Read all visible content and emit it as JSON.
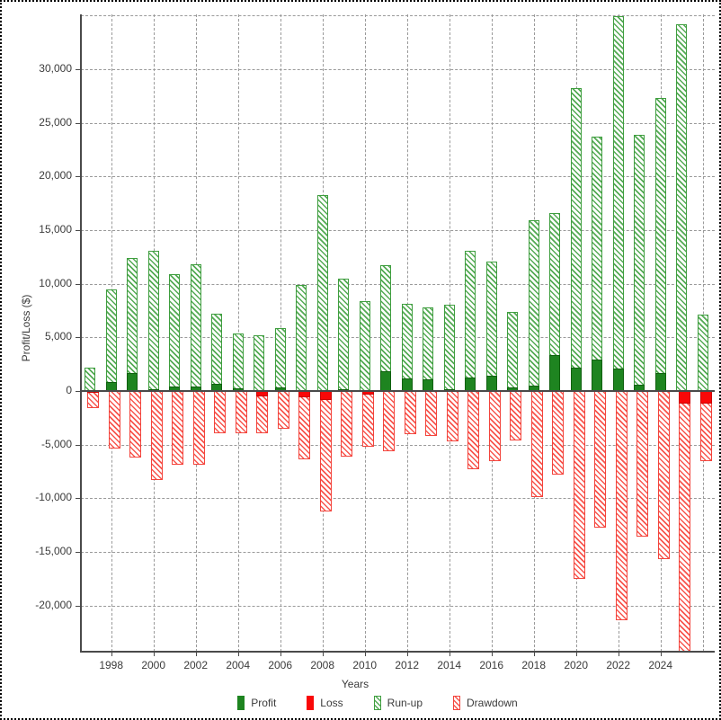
{
  "chart_data": {
    "type": "bar",
    "title": "",
    "xlabel": "Years",
    "ylabel": "Profit/Loss ($)",
    "categories": [
      1997,
      1998,
      1999,
      2000,
      2001,
      2002,
      2003,
      2004,
      2005,
      2006,
      2007,
      2008,
      2009,
      2010,
      2011,
      2012,
      2013,
      2014,
      2015,
      2016,
      2017,
      2018,
      2019,
      2020,
      2021,
      2022,
      2023,
      2024,
      2025,
      2026
    ],
    "series": [
      {
        "name": "Profit",
        "style": "solid",
        "color": "#1e8420",
        "values": [
          0,
          800,
          1650,
          150,
          400,
          400,
          700,
          250,
          0,
          330,
          0,
          0,
          200,
          0,
          1850,
          1150,
          1050,
          200,
          1250,
          1400,
          300,
          500,
          3350,
          2200,
          2950,
          2050,
          550,
          1650,
          0,
          0
        ]
      },
      {
        "name": "Loss",
        "style": "solid",
        "color": "#f90808",
        "values": [
          -200,
          0,
          0,
          0,
          0,
          0,
          0,
          0,
          -500,
          0,
          -600,
          -800,
          0,
          -300,
          0,
          0,
          0,
          0,
          0,
          0,
          0,
          0,
          0,
          0,
          0,
          0,
          0,
          0,
          -1200,
          -1150
        ]
      },
      {
        "name": "Run-up",
        "style": "hatch",
        "color": "#3f9e3f",
        "values": [
          2200,
          9500,
          12400,
          13100,
          10900,
          11800,
          7200,
          5400,
          5200,
          5900,
          9900,
          18300,
          10500,
          8400,
          11700,
          8100,
          7800,
          8000,
          13100,
          12100,
          7400,
          15900,
          16600,
          28200,
          23700,
          34900,
          23900,
          27300,
          34200,
          7100
        ]
      },
      {
        "name": "Drawdown",
        "style": "hatch",
        "color": "#f3443c",
        "values": [
          -1600,
          -5400,
          -6200,
          -8300,
          -6900,
          -6900,
          -3900,
          -3900,
          -3900,
          -3500,
          -6400,
          -11200,
          -6100,
          -5200,
          -5600,
          -4000,
          -4200,
          -4700,
          -7300,
          -6500,
          -4600,
          -9900,
          -7800,
          -17500,
          -12700,
          -21400,
          -13600,
          -15700,
          -24300,
          -6500
        ]
      }
    ],
    "ylim": [
      -24300,
      35100
    ],
    "ytick_step": 5000,
    "yticks_labeled": [
      30000,
      25000,
      20000,
      15000,
      10000,
      5000,
      0,
      -5000,
      -10000,
      -15000,
      -20000
    ],
    "xticks_labeled": [
      1998,
      2000,
      2002,
      2004,
      2006,
      2008,
      2010,
      2012,
      2014,
      2016,
      2018,
      2020,
      2022,
      2024
    ],
    "grid": true,
    "legend_position": "bottom"
  }
}
